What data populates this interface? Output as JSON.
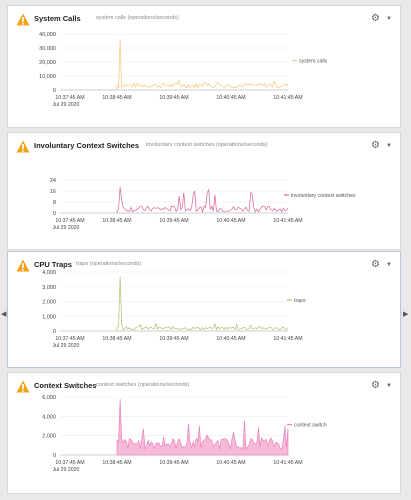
{
  "panels": [
    {
      "title": "System Calls",
      "subtitle": "system calls (operations/seconds)",
      "legend": "system calls",
      "color": "#f2c77a",
      "yticks": [
        "40,000",
        "30,000",
        "20,000",
        "10,000",
        "0"
      ],
      "xticks": [
        "10:37:45 AM",
        "10:38:45 AM",
        "10:39:45 AM",
        "10:40:45 AM",
        "10:41:45 AM"
      ],
      "date": "Jul 29 2020"
    },
    {
      "title": "Involuntary Context Switches",
      "subtitle": "involuntary context switches (operations/seconds)",
      "legend": "involuntary context switches",
      "color": "#d9609b",
      "yticks": [
        "24",
        "16",
        "8",
        "0"
      ],
      "xticks": [
        "10:37:45 AM",
        "10:38:45 AM",
        "10:39:45 AM",
        "10:40:45 AM",
        "10:41:45 AM"
      ],
      "date": "Jul 29 2020"
    },
    {
      "title": "CPU Traps",
      "subtitle": "traps (operations/seconds)",
      "legend": "traps",
      "color": "#a7c46a",
      "yticks": [
        "4,000",
        "3,000",
        "2,000",
        "1,000",
        "0"
      ],
      "xticks": [
        "10:37:45 AM",
        "10:38:45 AM",
        "10:39:45 AM",
        "10:40:45 AM",
        "10:41:45 AM"
      ],
      "date": "Jul 29 2020"
    },
    {
      "title": "Context Switches",
      "subtitle": "context switches (operations/seconds)",
      "legend": "context switch",
      "color": "#e879b4",
      "yticks": [
        "6,000",
        "4,000",
        "2,000",
        "0"
      ],
      "xticks": [
        "10:37:45 AM",
        "10:38:45 AM",
        "10:39:45 AM",
        "10:40:45 AM",
        "10:41:45 AM"
      ],
      "date": "Jul 29 2020"
    }
  ],
  "chart_data": [
    {
      "type": "line",
      "x": [
        "10:37:45 AM",
        "10:38:45 AM",
        "10:39:45 AM",
        "10:40:45 AM",
        "10:41:45 AM"
      ],
      "series": [
        {
          "name": "system calls",
          "values": [
            0,
            36000,
            3500,
            4500,
            3000
          ]
        }
      ],
      "ylim": [
        0,
        40000
      ]
    },
    {
      "type": "line",
      "x": [
        "10:37:45 AM",
        "10:38:45 AM",
        "10:39:45 AM",
        "10:40:45 AM",
        "10:41:45 AM"
      ],
      "series": [
        {
          "name": "involuntary context switches",
          "values": [
            0,
            22,
            18,
            20,
            21
          ]
        }
      ],
      "ylim": [
        0,
        28
      ]
    },
    {
      "type": "line",
      "x": [
        "10:37:45 AM",
        "10:38:45 AM",
        "10:39:45 AM",
        "10:40:45 AM",
        "10:41:45 AM"
      ],
      "series": [
        {
          "name": "traps",
          "values": [
            0,
            3700,
            250,
            300,
            350
          ]
        }
      ],
      "ylim": [
        0,
        4000
      ]
    },
    {
      "type": "area",
      "x": [
        "10:37:45 AM",
        "10:38:45 AM",
        "10:39:45 AM",
        "10:40:45 AM",
        "10:41:45 AM"
      ],
      "series": [
        {
          "name": "context switch",
          "values": [
            0,
            5800,
            2300,
            2600,
            2600
          ]
        }
      ],
      "ylim": [
        0,
        6000
      ]
    }
  ]
}
